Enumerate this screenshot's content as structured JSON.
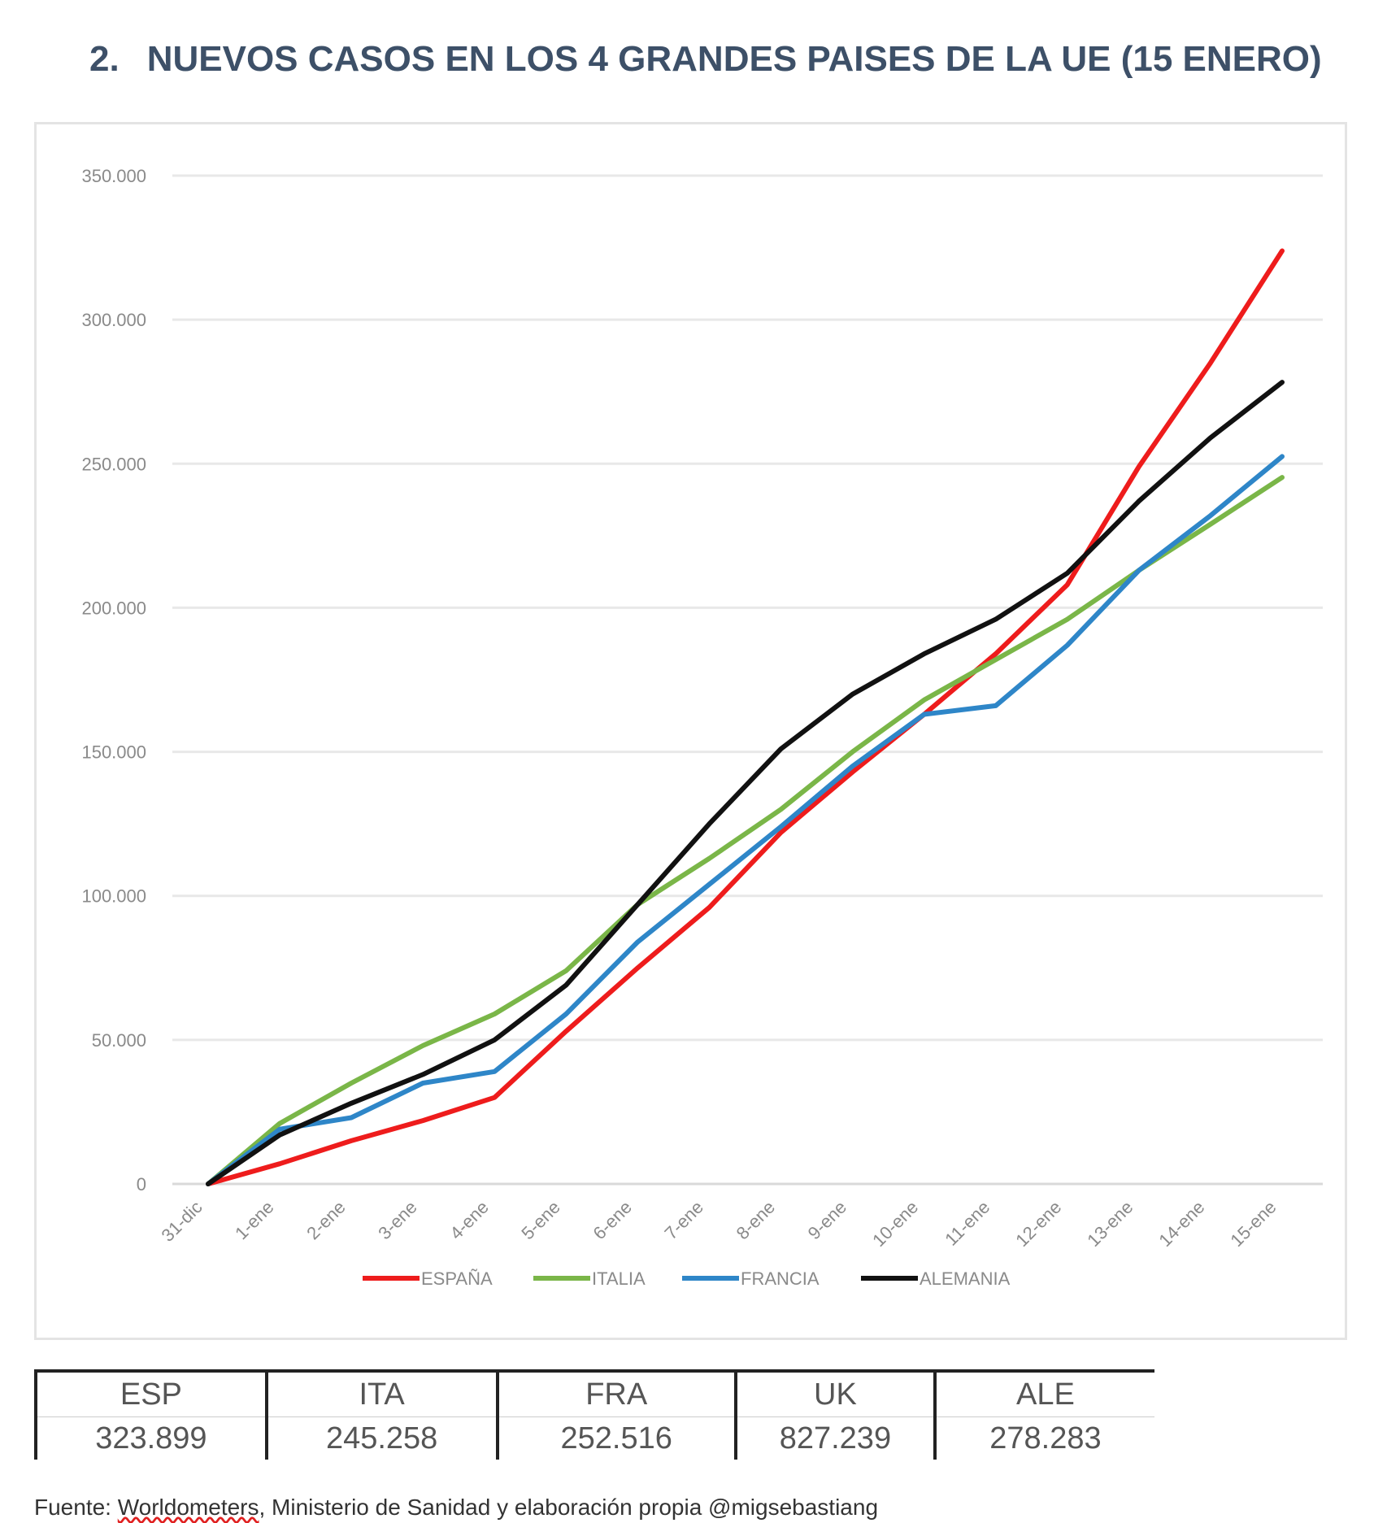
{
  "header": {
    "number": "2.",
    "title": "NUEVOS CASOS EN LOS 4 GRANDES PAISES DE LA UE (15 ENERO)"
  },
  "chart_data": {
    "type": "line",
    "title": "",
    "xlabel": "",
    "ylabel": "",
    "categories": [
      "31-dic",
      "1-ene",
      "2-ene",
      "3-ene",
      "4-ene",
      "5-ene",
      "6-ene",
      "7-ene",
      "8-ene",
      "9-ene",
      "10-ene",
      "11-ene",
      "12-ene",
      "13-ene",
      "14-ene",
      "15-ene"
    ],
    "y_ticks": [
      0,
      50000,
      100000,
      150000,
      200000,
      250000,
      300000,
      350000
    ],
    "y_tick_labels": [
      "0",
      "50.000",
      "100.000",
      "150.000",
      "200.000",
      "250.000",
      "300.000",
      "350.000"
    ],
    "ylim": [
      0,
      350000
    ],
    "grid": true,
    "legend_position": "bottom",
    "series": [
      {
        "name": "ESPAÑA",
        "color": "#ee1c1c",
        "values": [
          0,
          7000,
          15000,
          22000,
          30000,
          53000,
          75000,
          96000,
          122000,
          143000,
          163000,
          184000,
          208000,
          249000,
          285000,
          323899
        ]
      },
      {
        "name": "ITALIA",
        "color": "#7ab648",
        "values": [
          0,
          21000,
          35000,
          48000,
          59000,
          74000,
          97000,
          113000,
          130000,
          150000,
          168000,
          182000,
          196000,
          213000,
          229000,
          245258
        ]
      },
      {
        "name": "FRANCIA",
        "color": "#2e86c8",
        "values": [
          0,
          19000,
          23000,
          35000,
          39000,
          59000,
          84000,
          104000,
          124000,
          145000,
          163000,
          166000,
          187000,
          213000,
          232000,
          252516
        ]
      },
      {
        "name": "ALEMANIA",
        "color": "#111111",
        "values": [
          0,
          17000,
          28000,
          38000,
          50000,
          69000,
          97000,
          125000,
          151000,
          170000,
          184000,
          196000,
          212000,
          237000,
          259000,
          278283
        ]
      }
    ]
  },
  "summary_table": {
    "headers": [
      "ESP",
      "ITA",
      "FRA",
      "UK",
      "ALE"
    ],
    "values": [
      "323.899",
      "245.258",
      "252.516",
      "827.239",
      "278.283"
    ]
  },
  "source": {
    "prefix": "Fuente: ",
    "underlined": "Worldometers",
    "rest": ", Ministerio de Sanidad y elaboración propia @migsebastiang"
  }
}
